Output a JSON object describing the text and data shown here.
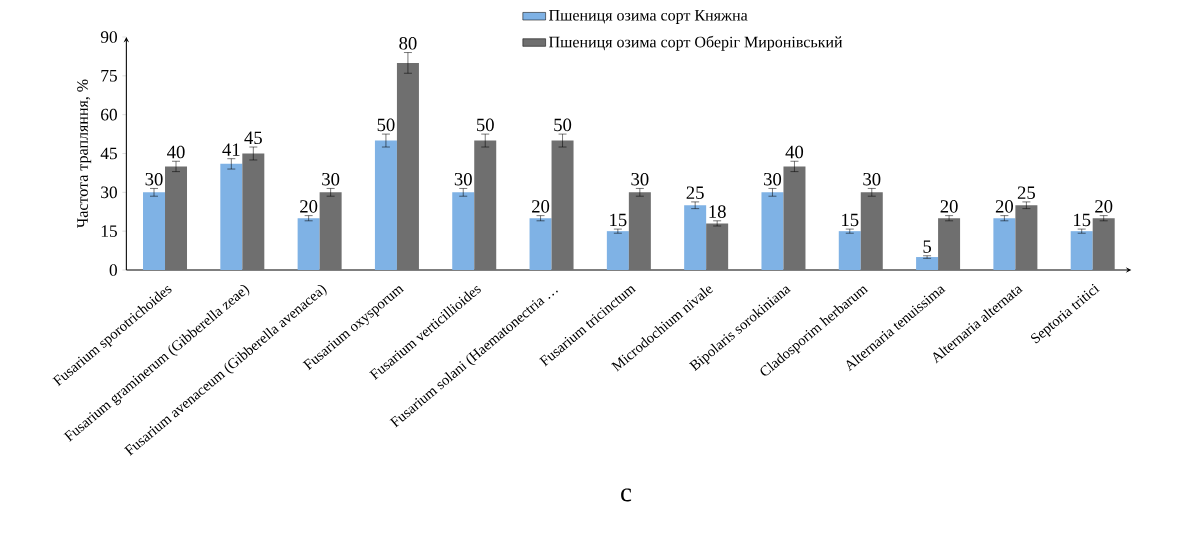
{
  "chart_data": {
    "type": "bar",
    "ylabel": "Частота трапляння, %",
    "categories": [
      "Fusarium sporotrichoides",
      "Fusarium graminerum (Gibberella zeae)",
      "Fusarium avenaceum (Gibberella avenacea)",
      "Fusarium oxysporum",
      "Fusarium verticillioides",
      "Fusarium solani (Haematonectria …",
      "Fusarium tricinctum",
      "Microdochium nivale",
      "Bipolaris sorokiniana",
      "Cladosporim herbarum",
      "Alternaria tenuissima",
      "Alternaria alternata",
      "Septoria tritici"
    ],
    "series": [
      {
        "name": "Пшениця озима сорт Княжна",
        "color": "#7fb2e5",
        "values": [
          30,
          41,
          20,
          50,
          30,
          20,
          15,
          25,
          30,
          15,
          5,
          20,
          15
        ],
        "errors": [
          1.5,
          2,
          1,
          2.5,
          1.5,
          1,
          0.8,
          1.3,
          1.5,
          0.8,
          0.5,
          1,
          0.8
        ]
      },
      {
        "name": "Пшениця озима сорт Оберіг Миронівський",
        "color": "#6f6f6f",
        "values": [
          40,
          45,
          30,
          80,
          50,
          50,
          30,
          18,
          40,
          30,
          20,
          25,
          20
        ],
        "errors": [
          2,
          2.5,
          1.5,
          4,
          2.5,
          2.5,
          1.5,
          1,
          2,
          1.5,
          1,
          1.3,
          1
        ]
      }
    ],
    "ylim": [
      0,
      90
    ],
    "yticks": [
      0,
      15,
      30,
      45,
      60,
      75,
      90
    ],
    "data_labels": true,
    "legend": "top",
    "annotations": [
      "c"
    ]
  }
}
